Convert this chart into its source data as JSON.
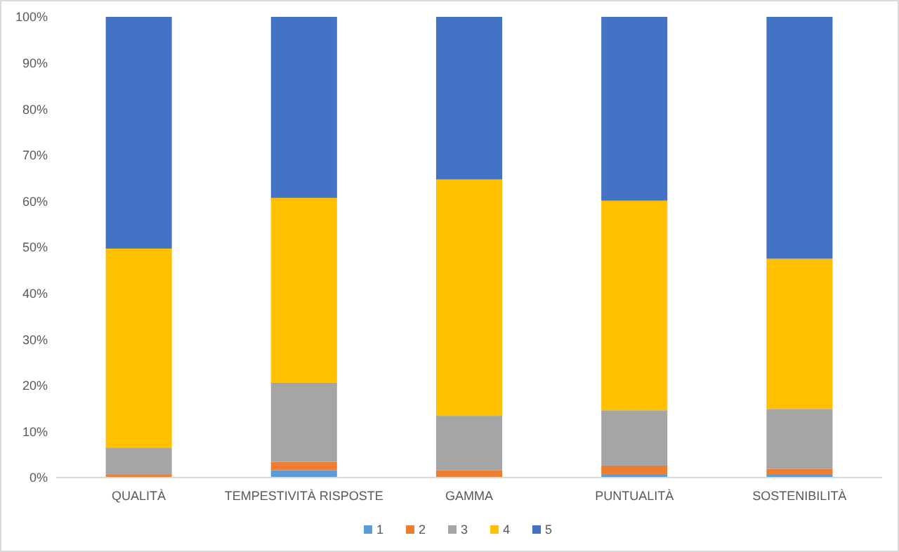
{
  "chart_data": {
    "type": "bar",
    "stacked": true,
    "categories": [
      "QUALITÀ",
      "TEMPESTIVITÀ RISPOSTE",
      "GAMMA",
      "PUNTUALITÀ",
      "SOSTENIBILITÀ"
    ],
    "series": [
      {
        "name": "1",
        "color": "#5b9bd5",
        "values": [
          0,
          1.6,
          0,
          0.6,
          0.6
        ]
      },
      {
        "name": "2",
        "color": "#ed7d31",
        "values": [
          0.6,
          1.8,
          1.6,
          2.0,
          1.3
        ]
      },
      {
        "name": "3",
        "color": "#a5a5a5",
        "values": [
          5.8,
          17.2,
          11.8,
          12.0,
          13.0
        ]
      },
      {
        "name": "4",
        "color": "#ffc000",
        "values": [
          43.3,
          40.1,
          51.3,
          45.5,
          32.6
        ]
      },
      {
        "name": "5",
        "color": "#4472c4",
        "values": [
          50.3,
          39.3,
          35.3,
          39.9,
          52.5
        ]
      }
    ],
    "ylim": [
      0,
      100
    ],
    "yticks": [
      {
        "value": 0,
        "label": "0%"
      },
      {
        "value": 10,
        "label": "10%"
      },
      {
        "value": 20,
        "label": "20%"
      },
      {
        "value": 30,
        "label": "30%"
      },
      {
        "value": 40,
        "label": "40%"
      },
      {
        "value": 50,
        "label": "50%"
      },
      {
        "value": 60,
        "label": "60%"
      },
      {
        "value": 70,
        "label": "70%"
      },
      {
        "value": 80,
        "label": "80%"
      },
      {
        "value": 90,
        "label": "90%"
      },
      {
        "value": 100,
        "label": "100%"
      }
    ],
    "grid": false,
    "legend": "bottom"
  }
}
